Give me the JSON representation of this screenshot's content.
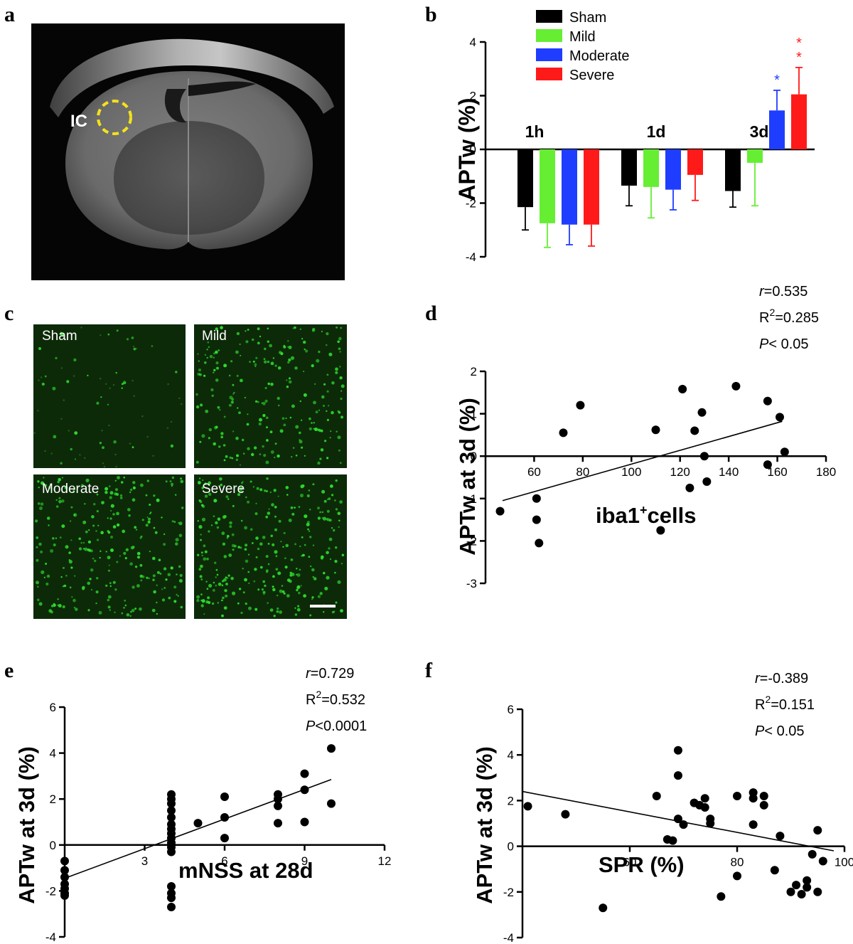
{
  "panels": {
    "a": "a",
    "b": "b",
    "c": "c",
    "d": "d",
    "e": "e",
    "f": "f"
  },
  "mri": {
    "roi_label": "IC",
    "roi_color": "#f5e21b"
  },
  "micrographs": {
    "labels": [
      "Sham",
      "Mild",
      "Moderate",
      "Severe"
    ],
    "density": [
      0.08,
      0.55,
      0.62,
      0.7
    ],
    "stain_color": "#2fdc2f"
  },
  "chart_data": [
    {
      "panel": "b",
      "type": "bar",
      "title": "",
      "ylabel": "APTw (%)",
      "xlabel": "",
      "categories": [
        "1h",
        "1d",
        "3d"
      ],
      "ylim": [
        -4,
        4
      ],
      "yticks": [
        -4,
        -2,
        0,
        2,
        4
      ],
      "legend_position": "top-left",
      "series": [
        {
          "name": "Sham",
          "color": "#000000",
          "values": [
            -2.15,
            -1.35,
            -1.55
          ],
          "errors": [
            0.85,
            0.75,
            0.6
          ]
        },
        {
          "name": "Mild",
          "color": "#66ee33",
          "values": [
            -2.75,
            -1.4,
            -0.5
          ],
          "errors": [
            0.9,
            1.15,
            1.6
          ]
        },
        {
          "name": "Moderate",
          "color": "#1f3dff",
          "values": [
            -2.8,
            -1.5,
            1.45
          ],
          "errors": [
            0.75,
            0.75,
            0.75
          ]
        },
        {
          "name": "Severe",
          "color": "#ff1a1a",
          "values": [
            -2.8,
            -0.95,
            2.05
          ],
          "errors": [
            0.8,
            0.95,
            1.0
          ]
        }
      ],
      "annotations": [
        {
          "category": "3d",
          "series": "Moderate",
          "text": "*",
          "color": "#1f3dff"
        },
        {
          "category": "3d",
          "series": "Severe",
          "text": "**",
          "color": "#ff1a1a"
        }
      ]
    },
    {
      "panel": "d",
      "type": "scatter",
      "title": "",
      "xlabel": "iba1",
      "xlabel_sup": "+",
      "xlabel_suffix": "cells",
      "ylabel": "APTw at 3d (%)",
      "xlim": [
        40,
        180
      ],
      "ylim": [
        -3,
        2
      ],
      "xticks": [
        60,
        80,
        100,
        120,
        140,
        160,
        180
      ],
      "yticks": [
        -3,
        -2,
        -1,
        0,
        1,
        2
      ],
      "stats": {
        "r_sym": "r",
        "r_val": "=0.535",
        "R2_base": "R",
        "R2_sup": "2",
        "R2_val": "=0.285",
        "P_sym": "P",
        "P_val": "< 0.05"
      },
      "fit": {
        "x": [
          47,
          162
        ],
        "y": [
          -1.05,
          0.82
        ]
      },
      "x": [
        46,
        61,
        61,
        62,
        72,
        79,
        110,
        112,
        121,
        124,
        126,
        129,
        130,
        131,
        143,
        156,
        156,
        161,
        163
      ],
      "y": [
        -1.3,
        -1.0,
        -1.5,
        -2.05,
        0.55,
        1.2,
        0.62,
        -1.75,
        1.58,
        -0.75,
        0.6,
        1.03,
        0.0,
        -0.6,
        1.65,
        1.3,
        -0.2,
        0.92,
        0.1
      ]
    },
    {
      "panel": "e",
      "type": "scatter",
      "title": "",
      "xlabel": "mNSS at 28d",
      "ylabel": "APTw at 3d (%)",
      "xlim": [
        0,
        12
      ],
      "ylim": [
        -4,
        6
      ],
      "xticks": [
        3,
        6,
        9,
        12
      ],
      "yticks": [
        -4,
        -2,
        0,
        2,
        4,
        6
      ],
      "stats": {
        "r_sym": "r",
        "r_val": "=0.729",
        "R2_base": "R",
        "R2_sup": "2",
        "R2_val": "=0.532",
        "P_sym": "P",
        "P_val": "<0.0001"
      },
      "fit": {
        "x": [
          0,
          10
        ],
        "y": [
          -1.45,
          2.85
        ]
      },
      "x": [
        0,
        0,
        0,
        0,
        0,
        0,
        0,
        4,
        4,
        4,
        4,
        4,
        4,
        4,
        4,
        4,
        4,
        4,
        4,
        4,
        4,
        4,
        4,
        5,
        6,
        6,
        6,
        8,
        8,
        8,
        8,
        9,
        9,
        9,
        10,
        10
      ],
      "y": [
        -0.7,
        -1.1,
        -1.4,
        -1.7,
        -1.9,
        -2.1,
        -2.2,
        2.2,
        2.0,
        1.8,
        1.5,
        1.2,
        0.9,
        0.7,
        0.5,
        0.3,
        0.1,
        -0.1,
        -0.3,
        -1.8,
        -2.1,
        -2.3,
        -2.7,
        0.95,
        2.1,
        1.2,
        0.3,
        2.2,
        2.0,
        1.7,
        0.95,
        3.1,
        2.4,
        1.0,
        4.2,
        1.8
      ]
    },
    {
      "panel": "f",
      "type": "scatter",
      "title": "",
      "xlabel": "SPR (%)",
      "ylabel": "APTw at 3d (%)",
      "xlim": [
        40,
        100
      ],
      "ylim": [
        -4,
        6
      ],
      "xticks": [
        60,
        80,
        100
      ],
      "yticks": [
        -4,
        -2,
        0,
        2,
        4,
        6
      ],
      "stats": {
        "r_sym": "r",
        "r_val": "=-0.389",
        "R2_base": "R",
        "R2_sup": "2",
        "R2_val": "=0.151",
        "P_sym": "P",
        "P_val": "< 0.05"
      },
      "fit": {
        "x": [
          40,
          98
        ],
        "y": [
          2.4,
          -0.2
        ]
      },
      "x": [
        41,
        48,
        55,
        65,
        67,
        68,
        69,
        69,
        69,
        70,
        72,
        73,
        74,
        74,
        75,
        75,
        77,
        80,
        80,
        83,
        83,
        83,
        85,
        85,
        87,
        88,
        90,
        91,
        92,
        93,
        93,
        94,
        95,
        95,
        96
      ],
      "y": [
        1.75,
        1.4,
        -2.7,
        2.2,
        0.3,
        0.25,
        4.2,
        3.1,
        1.2,
        0.95,
        1.9,
        1.8,
        2.1,
        1.7,
        1.0,
        1.2,
        -2.2,
        2.2,
        -1.3,
        2.35,
        2.1,
        0.95,
        2.2,
        1.8,
        -1.05,
        0.45,
        -2.0,
        -1.7,
        -2.1,
        -1.5,
        -1.8,
        -0.35,
        -2.0,
        0.7,
        -0.65
      ]
    }
  ]
}
